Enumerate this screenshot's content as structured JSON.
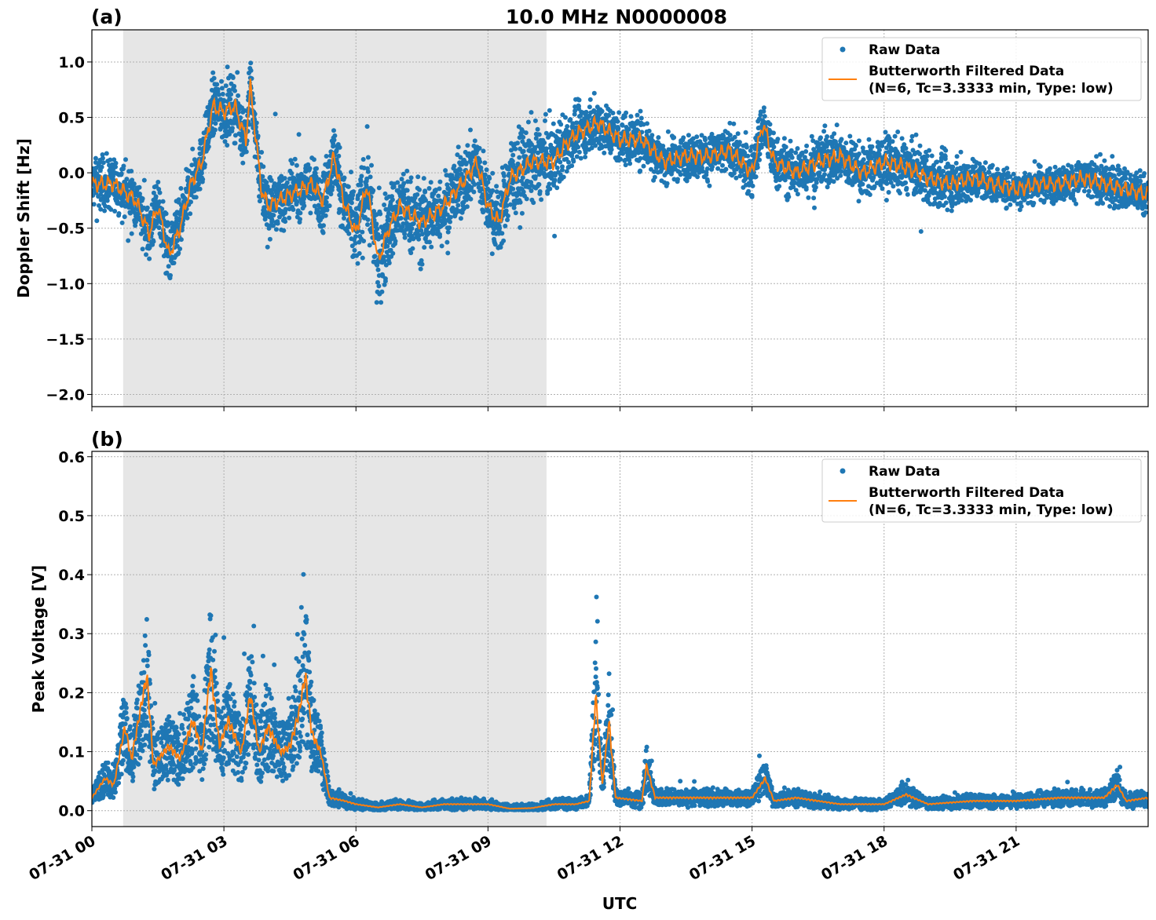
{
  "chart_data": [
    {
      "type": "scatter+line",
      "panel_label": "(a)",
      "title": "10.0 MHz N0000008",
      "xlabel": "",
      "ylabel": "Doppler Shift [Hz]",
      "xlim_hours": [
        0,
        24
      ],
      "ylim": [
        -2.11,
        1.29
      ],
      "yticks": [
        "1.0",
        "0.5",
        "0.0",
        "−0.5",
        "−1.0",
        "−1.5",
        "−2.0"
      ],
      "ytick_values": [
        1.0,
        0.5,
        0.0,
        -0.5,
        -1.0,
        -1.5,
        -2.0
      ],
      "grid": true,
      "shaded_interval_hours": [
        0.71,
        10.33
      ],
      "legend": {
        "placement": "top-right",
        "raw": "Raw Data",
        "filtered_line1": "Butterworth Filtered Data",
        "filtered_line2": "(N=6, Tc=3.3333 min, Type: low)"
      },
      "series_note_columns": [
        "hour",
        "filtered_value",
        "raw_half_spread"
      ],
      "filtered": [
        [
          0,
          -0.1,
          0.3
        ],
        [
          0.5,
          -0.1,
          0.3
        ],
        [
          1.0,
          -0.25,
          0.3
        ],
        [
          1.3,
          -0.55,
          0.3
        ],
        [
          1.5,
          -0.3,
          0.35
        ],
        [
          1.75,
          -0.75,
          0.4
        ],
        [
          2.0,
          -0.5,
          0.35
        ],
        [
          2.25,
          -0.1,
          0.3
        ],
        [
          2.5,
          0.1,
          0.3
        ],
        [
          2.75,
          0.6,
          0.35
        ],
        [
          3.0,
          0.55,
          0.35
        ],
        [
          3.25,
          0.6,
          0.35
        ],
        [
          3.5,
          0.3,
          0.35
        ],
        [
          3.6,
          0.78,
          0.3
        ],
        [
          3.85,
          -0.15,
          0.35
        ],
        [
          4.0,
          -0.3,
          0.4
        ],
        [
          4.5,
          -0.2,
          0.3
        ],
        [
          5.0,
          -0.1,
          0.3
        ],
        [
          5.25,
          -0.25,
          0.35
        ],
        [
          5.5,
          0.15,
          0.4
        ],
        [
          5.75,
          -0.3,
          0.45
        ],
        [
          6.0,
          -0.55,
          0.5
        ],
        [
          6.25,
          -0.1,
          0.5
        ],
        [
          6.5,
          -0.8,
          0.6
        ],
        [
          6.75,
          -0.5,
          0.5
        ],
        [
          7.0,
          -0.3,
          0.45
        ],
        [
          7.5,
          -0.45,
          0.45
        ],
        [
          8.0,
          -0.3,
          0.4
        ],
        [
          8.5,
          -0.05,
          0.4
        ],
        [
          8.75,
          0.1,
          0.4
        ],
        [
          9.0,
          -0.3,
          0.4
        ],
        [
          9.25,
          -0.45,
          0.4
        ],
        [
          9.5,
          -0.05,
          0.45
        ],
        [
          10.0,
          0.1,
          0.45
        ],
        [
          10.5,
          0.1,
          0.4
        ],
        [
          10.75,
          0.25,
          0.35
        ],
        [
          11.0,
          0.35,
          0.3
        ],
        [
          11.5,
          0.45,
          0.3
        ],
        [
          12.0,
          0.3,
          0.3
        ],
        [
          12.5,
          0.3,
          0.3
        ],
        [
          13.0,
          0.1,
          0.25
        ],
        [
          13.5,
          0.15,
          0.25
        ],
        [
          14.0,
          0.15,
          0.25
        ],
        [
          14.5,
          0.2,
          0.25
        ],
        [
          15.0,
          0.0,
          0.3
        ],
        [
          15.25,
          0.45,
          0.3
        ],
        [
          15.5,
          0.1,
          0.3
        ],
        [
          16.0,
          0.0,
          0.3
        ],
        [
          16.5,
          0.1,
          0.35
        ],
        [
          17.0,
          0.15,
          0.3
        ],
        [
          17.5,
          0.0,
          0.3
        ],
        [
          18.0,
          0.1,
          0.3
        ],
        [
          18.5,
          0.05,
          0.3
        ],
        [
          19.0,
          -0.05,
          0.3
        ],
        [
          19.5,
          -0.1,
          0.3
        ],
        [
          20.0,
          -0.05,
          0.25
        ],
        [
          20.5,
          -0.1,
          0.2
        ],
        [
          21.0,
          -0.15,
          0.2
        ],
        [
          21.5,
          -0.1,
          0.2
        ],
        [
          22.0,
          -0.1,
          0.2
        ],
        [
          22.5,
          -0.05,
          0.2
        ],
        [
          23.0,
          -0.1,
          0.25
        ],
        [
          23.5,
          -0.15,
          0.25
        ],
        [
          24.0,
          -0.2,
          0.25
        ]
      ]
    },
    {
      "type": "scatter+line",
      "panel_label": "(b)",
      "xlabel": "UTC",
      "ylabel": "Peak Voltage [V]",
      "xlim_hours": [
        0,
        24
      ],
      "ylim": [
        -0.027,
        0.609
      ],
      "yticks": [
        "0.6",
        "0.5",
        "0.4",
        "0.3",
        "0.2",
        "0.1",
        "0.0"
      ],
      "ytick_values": [
        0.6,
        0.5,
        0.4,
        0.3,
        0.2,
        0.1,
        0.0
      ],
      "xticks": [
        "07-31 00",
        "07-31 03",
        "07-31 06",
        "07-31 09",
        "07-31 12",
        "07-31 15",
        "07-31 18",
        "07-31 21"
      ],
      "xtick_hours": [
        0,
        3,
        6,
        9,
        12,
        15,
        18,
        21
      ],
      "grid": true,
      "shaded_interval_hours": [
        0.71,
        10.33
      ],
      "legend": {
        "placement": "top-right",
        "raw": "Raw Data",
        "filtered_line1": "Butterworth Filtered Data",
        "filtered_line2": "(N=6, Tc=3.3333 min, Type: low)"
      },
      "filtered": [
        [
          0,
          0.02
        ],
        [
          0.3,
          0.05
        ],
        [
          0.5,
          0.04
        ],
        [
          0.75,
          0.13
        ],
        [
          0.9,
          0.08
        ],
        [
          1.25,
          0.21
        ],
        [
          1.4,
          0.07
        ],
        [
          1.75,
          0.1
        ],
        [
          2.0,
          0.08
        ],
        [
          2.3,
          0.14
        ],
        [
          2.5,
          0.09
        ],
        [
          2.7,
          0.22
        ],
        [
          2.9,
          0.1
        ],
        [
          3.1,
          0.14
        ],
        [
          3.4,
          0.09
        ],
        [
          3.6,
          0.18
        ],
        [
          3.8,
          0.09
        ],
        [
          4.0,
          0.13
        ],
        [
          4.3,
          0.09
        ],
        [
          4.5,
          0.1
        ],
        [
          4.7,
          0.15
        ],
        [
          4.85,
          0.21
        ],
        [
          5.0,
          0.12
        ],
        [
          5.2,
          0.09
        ],
        [
          5.4,
          0.02
        ],
        [
          5.75,
          0.015
        ],
        [
          6.0,
          0.01
        ],
        [
          6.5,
          0.005
        ],
        [
          7.0,
          0.01
        ],
        [
          7.5,
          0.005
        ],
        [
          8.0,
          0.01
        ],
        [
          8.5,
          0.01
        ],
        [
          9.0,
          0.01
        ],
        [
          9.5,
          0.003
        ],
        [
          10.0,
          0.004
        ],
        [
          10.5,
          0.01
        ],
        [
          11.0,
          0.01
        ],
        [
          11.3,
          0.015
        ],
        [
          11.45,
          0.18
        ],
        [
          11.6,
          0.04
        ],
        [
          11.75,
          0.14
        ],
        [
          11.9,
          0.02
        ],
        [
          12.5,
          0.015
        ],
        [
          12.6,
          0.07
        ],
        [
          12.8,
          0.02
        ],
        [
          13.5,
          0.02
        ],
        [
          14.0,
          0.02
        ],
        [
          15.0,
          0.02
        ],
        [
          15.3,
          0.05
        ],
        [
          15.5,
          0.015
        ],
        [
          16.0,
          0.02
        ],
        [
          17.0,
          0.01
        ],
        [
          18.0,
          0.01
        ],
        [
          18.5,
          0.025
        ],
        [
          19.0,
          0.01
        ],
        [
          20.0,
          0.015
        ],
        [
          21.0,
          0.015
        ],
        [
          22.0,
          0.02
        ],
        [
          23.0,
          0.02
        ],
        [
          23.3,
          0.04
        ],
        [
          23.5,
          0.015
        ],
        [
          24.0,
          0.02
        ]
      ]
    }
  ],
  "colors": {
    "raw": "#1f77b4",
    "filtered": "#ff7f0e",
    "shade": "#e6e6e6"
  }
}
